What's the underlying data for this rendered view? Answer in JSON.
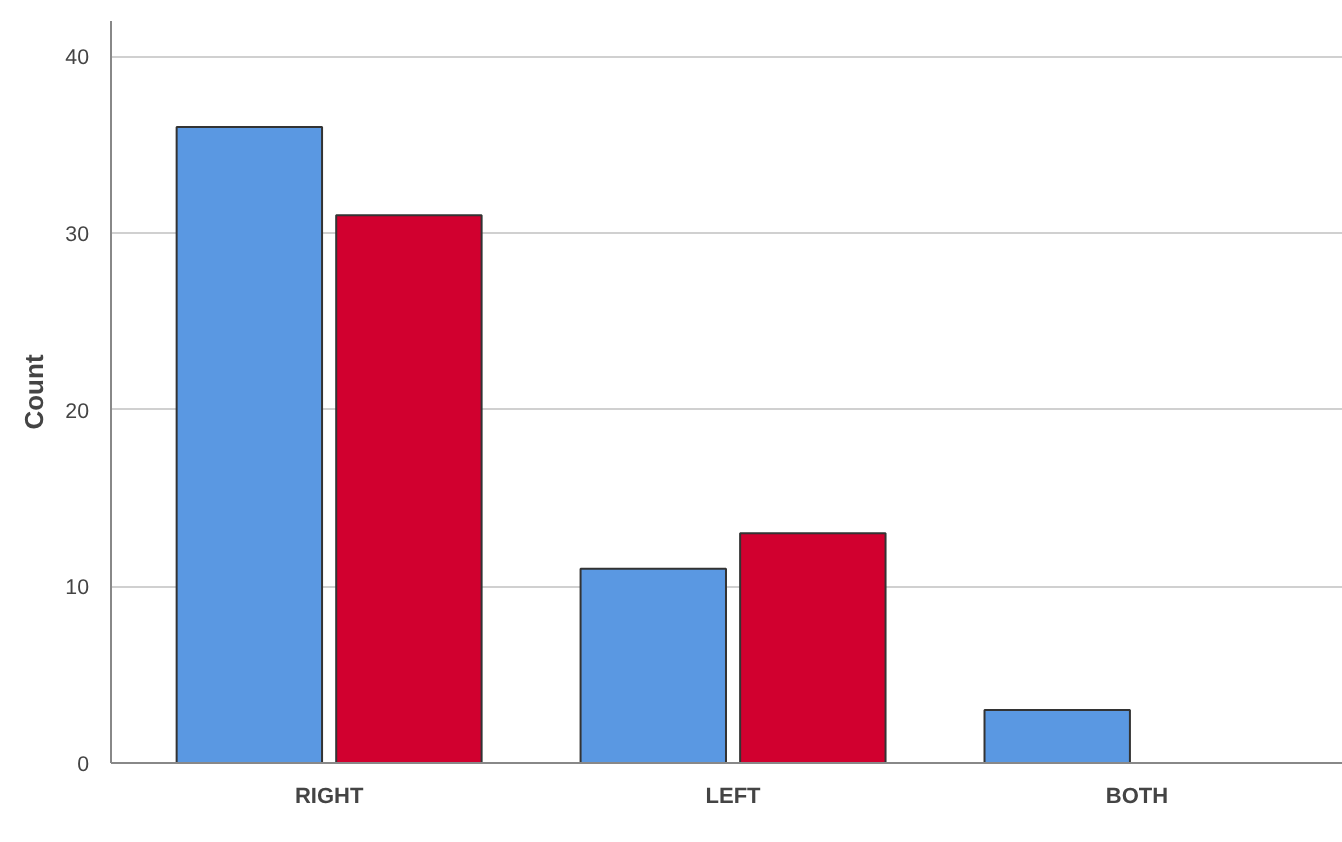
{
  "chart_data": {
    "type": "bar",
    "ylabel": "Count",
    "categories": [
      "RIGHT",
      "LEFT",
      "BOTH"
    ],
    "series": [
      {
        "color": "#5a98e2",
        "values": [
          36,
          11,
          3
        ]
      },
      {
        "color": "#d1002f",
        "values": [
          31,
          13,
          null
        ]
      }
    ],
    "ylim": [
      0,
      42
    ],
    "yticks": [
      0,
      10,
      20,
      30,
      40
    ],
    "grid": "y"
  }
}
